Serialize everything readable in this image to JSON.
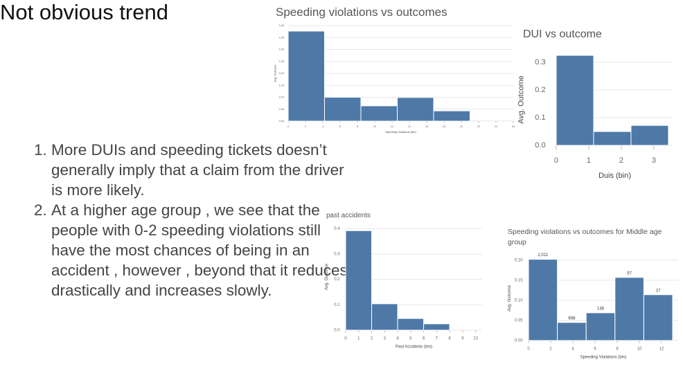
{
  "title": "Not obvious trend",
  "points": [
    "More DUIs and speeding tickets doesn’t generally imply that a claim from the driver is more likely.",
    "At a higher age group , we see that the people with 0-2 speeding violations still have the most chances of being in an accident , however , beyond that it reduces drastically and increases slowly."
  ],
  "chart_data": [
    {
      "type": "histogram",
      "title": "Speeding violations vs outcomes",
      "y_label": "Avg. Outcome",
      "x_label": "Speeding Violations (bin)",
      "bins": [
        0,
        4.2,
        8.4,
        12.6,
        16.8,
        21
      ],
      "values": [
        0.377,
        0.1,
        0.064,
        0.099,
        0.043
      ],
      "color": "#4e79a7",
      "xlim": [
        0,
        26
      ],
      "xticks": [
        0,
        2,
        4,
        6,
        8,
        10,
        12,
        14,
        16,
        18,
        20,
        22,
        24,
        26
      ],
      "ylim": [
        0,
        0.4
      ],
      "yticks": [
        {
          "value": 0,
          "label": "0.00"
        },
        0.05,
        {
          "value": 0.1,
          "label": "0.10"
        },
        0.15,
        {
          "value": 0.2,
          "label": "0.20"
        },
        0.25,
        {
          "value": 0.3,
          "label": "0.30"
        },
        0.35,
        {
          "value": 0.4,
          "label": "0.40"
        }
      ],
      "grid": true
    },
    {
      "type": "histogram",
      "title": "DUI vs outcome",
      "y_label": "Avg. Outcome",
      "x_label": "Duis (bin)",
      "bins": [
        0,
        1.15,
        2.3,
        3.45
      ],
      "values": [
        0.325,
        0.05,
        0.072
      ],
      "color": "#4e79a7",
      "xlim": [
        0,
        3.6
      ],
      "xticks": [
        0,
        1,
        2,
        3
      ],
      "ylim": [
        0,
        0.33
      ],
      "yticks": [
        {
          "value": 0,
          "label": "0.0"
        },
        0.1,
        0.2,
        0.3
      ],
      "grid": true
    },
    {
      "type": "histogram",
      "title": "past accidents",
      "y_label": "Avg. Outcome",
      "x_label": "Past Accidents (bin)",
      "bins": [
        0,
        2,
        4,
        6,
        8
      ],
      "values": [
        0.392,
        0.104,
        0.046,
        0.025
      ],
      "color": "#4e79a7",
      "xlim": [
        0,
        10.5
      ],
      "xticks": [
        0,
        1,
        2,
        3,
        4,
        5,
        6,
        7,
        8,
        9,
        10
      ],
      "ylim": [
        0,
        0.42
      ],
      "yticks": [
        {
          "value": 0,
          "label": "0.0"
        },
        0.1,
        0.2,
        0.3,
        0.4
      ],
      "grid": true
    },
    {
      "type": "histogram",
      "title": "Speeding violations vs outcomes for Middle age group",
      "y_label": "Avg. Outcome",
      "x_label": "Speeding Violations (bin)",
      "bins": [
        0,
        2.6,
        5.2,
        7.8,
        10.4,
        13
      ],
      "values": [
        0.202,
        0.045,
        0.069,
        0.157,
        0.114
      ],
      "color": "#4e79a7",
      "annotations": [
        "2,021",
        "698",
        "136",
        "57",
        "17"
      ],
      "xlim": [
        0,
        13.5
      ],
      "xticks": [
        0,
        2,
        4,
        6,
        8,
        10,
        12
      ],
      "ylim": [
        0,
        0.21
      ],
      "yticks": [
        {
          "value": 0,
          "label": "0.00"
        },
        0.05,
        {
          "value": 0.1,
          "label": "0.10"
        },
        0.15,
        {
          "value": 0.2,
          "label": "0.20"
        }
      ],
      "grid": true
    }
  ]
}
